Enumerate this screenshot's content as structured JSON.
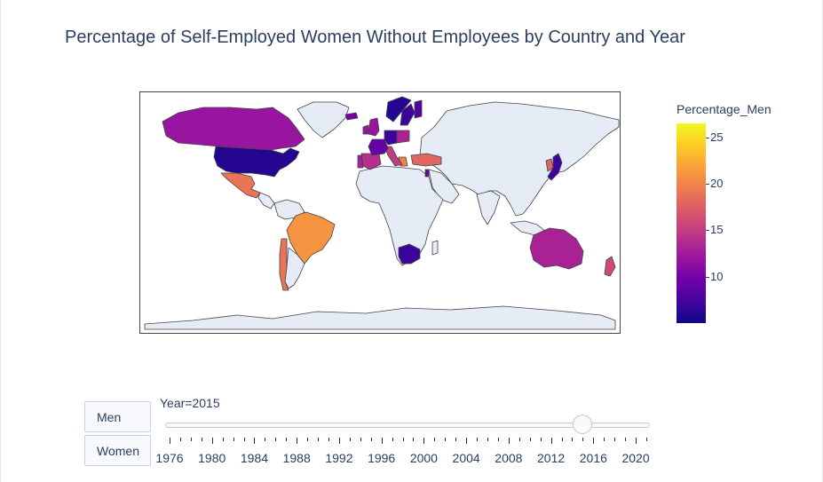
{
  "title": "Percentage of Self-Employed Women Without Employees by Country and Year",
  "buttons": {
    "men": "Men",
    "women": "Women"
  },
  "slider": {
    "label": "Year=2015",
    "selected_year": 2015,
    "min_year": 1976,
    "max_year": 2021,
    "tick_labels": [
      "1976",
      "1980",
      "1984",
      "1988",
      "1992",
      "1996",
      "2000",
      "2004",
      "2008",
      "2012",
      "2016",
      "2020"
    ]
  },
  "colors": {
    "land_no_data": "#e5ecf6",
    "border": "#444444",
    "colorscale": [
      "#0d0887",
      "#46039f",
      "#7201a8",
      "#9c179e",
      "#bd3786",
      "#d8576b",
      "#ed7953",
      "#fb9f3a",
      "#fdca26",
      "#f0f921"
    ]
  },
  "chart_data": {
    "type": "choropleth",
    "title": "Percentage of Self-Employed Women Without Employees by Country and Year",
    "colorbar": {
      "title": "Percentage_Men",
      "range": [
        5,
        26.5
      ],
      "ticks": [
        10,
        15,
        20,
        25
      ]
    },
    "year": 2015,
    "countries": [
      {
        "name": "Canada",
        "value": 12
      },
      {
        "name": "United States",
        "value": 6
      },
      {
        "name": "Mexico",
        "value": 19
      },
      {
        "name": "Brazil",
        "value": 21
      },
      {
        "name": "Chile",
        "value": 19
      },
      {
        "name": "Australia",
        "value": 13
      },
      {
        "name": "New Zealand",
        "value": 16
      },
      {
        "name": "South Africa",
        "value": 7
      },
      {
        "name": "Japan",
        "value": 7
      },
      {
        "name": "South Korea",
        "value": 18
      },
      {
        "name": "Turkey",
        "value": 18
      },
      {
        "name": "United Kingdom",
        "value": 12
      },
      {
        "name": "Ireland",
        "value": 12
      },
      {
        "name": "France",
        "value": 9
      },
      {
        "name": "Spain",
        "value": 14
      },
      {
        "name": "Portugal",
        "value": 13
      },
      {
        "name": "Italy",
        "value": 15
      },
      {
        "name": "Germany",
        "value": 7
      },
      {
        "name": "Poland",
        "value": 13
      },
      {
        "name": "Norway",
        "value": 6
      },
      {
        "name": "Sweden",
        "value": 7
      },
      {
        "name": "Finland",
        "value": 8
      },
      {
        "name": "Greece",
        "value": 20
      },
      {
        "name": "Israel",
        "value": 9
      },
      {
        "name": "Iceland",
        "value": 10
      }
    ]
  }
}
